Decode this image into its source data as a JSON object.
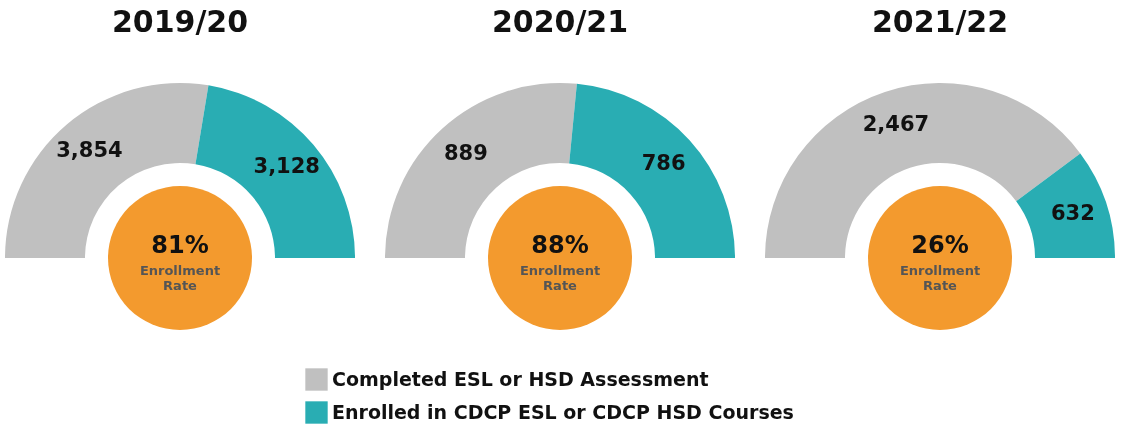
{
  "chart_data": [
    {
      "type": "donut",
      "title": "2019/20",
      "categories": [
        "Completed ESL or HSD Assessment",
        "Enrolled in CDCP ESL or CDCP HSD Courses"
      ],
      "values": [
        3854,
        3128
      ],
      "value_labels": [
        "3,854",
        "3,128"
      ],
      "colors": [
        "#c0c0c0",
        "#29adb3"
      ],
      "legend": "bottom",
      "annotations": [
        "81%",
        "Enrollment Rate"
      ]
    },
    {
      "type": "donut",
      "title": "2020/21",
      "categories": [
        null,
        null
      ],
      "values": [
        889,
        786
      ],
      "value_labels": [
        "889",
        "786"
      ],
      "colors": [
        "#c0c0c0",
        "#29adb3"
      ],
      "annotations": [
        "88%",
        "Enrollment Rate"
      ]
    },
    {
      "type": "donut",
      "title": "2021/22",
      "categories": [
        null,
        null
      ],
      "values": [
        2467,
        632
      ],
      "value_labels": [
        "2,467",
        "632"
      ],
      "colors": [
        "#c0c0c0",
        "#29adb3"
      ],
      "annotations": [
        "26%",
        "Enrollment Rate"
      ]
    }
  ]
}
